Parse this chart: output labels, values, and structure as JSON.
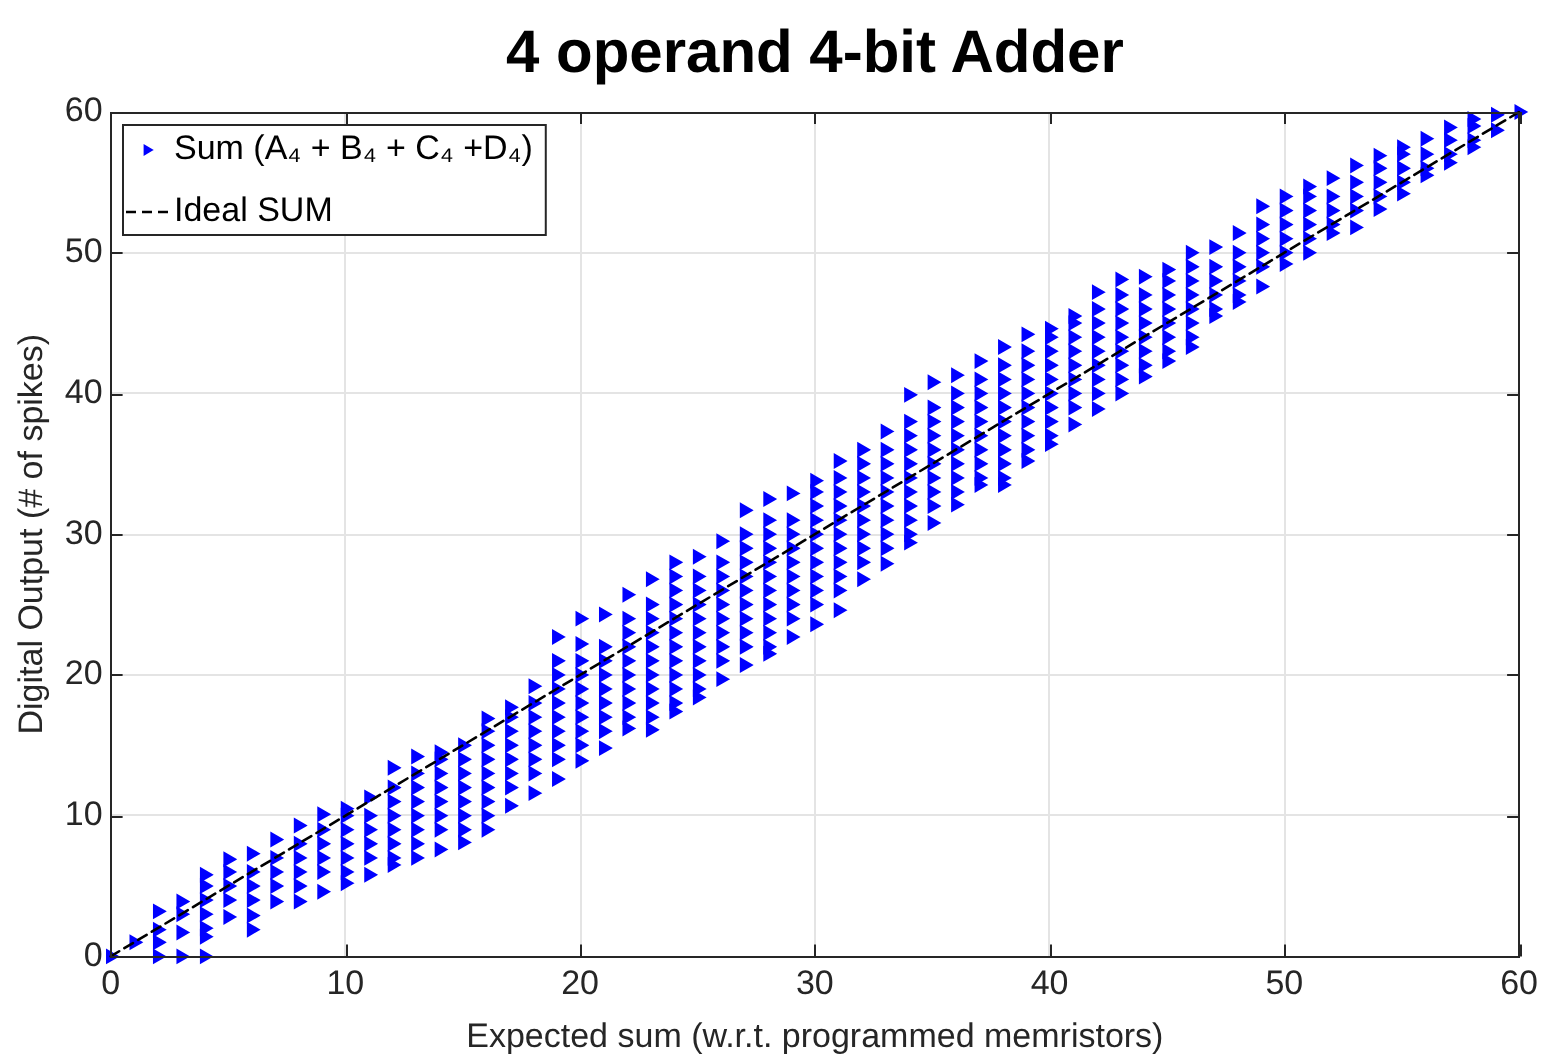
{
  "chart_data": {
    "type": "scatter",
    "title": "4 operand 4-bit Adder",
    "xlabel": "Expected sum (w.r.t. programmed memristors)",
    "ylabel": "Digital Output (# of spikes)",
    "xlim": [
      0,
      60
    ],
    "ylim": [
      0,
      60
    ],
    "xticks": [
      0,
      10,
      20,
      30,
      40,
      50,
      60
    ],
    "yticks": [
      0,
      10,
      20,
      30,
      40,
      50,
      60
    ],
    "grid": true,
    "legend": "top left",
    "series": [
      {
        "name": "Sum (A₄ + B₄ + C₄ +D₄)",
        "color": "#0000ff",
        "marker": "triangle",
        "x": [
          0,
          1,
          2,
          2,
          2,
          2,
          3,
          3,
          3,
          3,
          4,
          4,
          4,
          4,
          4,
          4,
          4,
          5,
          5,
          5,
          5,
          5,
          6,
          6,
          6,
          6,
          6,
          6,
          7,
          7,
          7,
          7,
          7,
          8,
          8,
          8,
          8,
          8,
          8,
          9,
          9,
          9,
          9,
          9,
          9,
          10,
          10,
          10,
          10,
          10,
          10,
          10,
          11,
          11,
          11,
          11,
          11,
          11,
          12,
          12,
          12,
          12,
          12,
          12,
          12,
          12,
          13,
          13,
          13,
          13,
          13,
          13,
          13,
          13,
          14,
          14,
          14,
          14,
          14,
          14,
          14,
          14,
          15,
          15,
          15,
          15,
          15,
          15,
          15,
          15,
          16,
          16,
          16,
          16,
          16,
          16,
          16,
          16,
          16,
          17,
          17,
          17,
          17,
          17,
          17,
          17,
          17,
          18,
          18,
          18,
          18,
          18,
          18,
          18,
          18,
          19,
          19,
          19,
          19,
          19,
          19,
          19,
          19,
          19,
          19,
          20,
          20,
          20,
          20,
          20,
          20,
          20,
          20,
          20,
          20,
          21,
          21,
          21,
          21,
          21,
          21,
          21,
          21,
          21,
          22,
          22,
          22,
          22,
          22,
          22,
          22,
          22,
          22,
          22,
          23,
          23,
          23,
          23,
          23,
          23,
          23,
          23,
          23,
          23,
          23,
          24,
          24,
          24,
          24,
          24,
          24,
          24,
          24,
          24,
          24,
          24,
          24,
          25,
          25,
          25,
          25,
          25,
          25,
          25,
          25,
          25,
          25,
          25,
          26,
          26,
          26,
          26,
          26,
          26,
          26,
          26,
          26,
          26,
          27,
          27,
          27,
          27,
          27,
          27,
          27,
          27,
          27,
          27,
          27,
          28,
          28,
          28,
          28,
          28,
          28,
          28,
          28,
          28,
          28,
          28,
          28,
          29,
          29,
          29,
          29,
          29,
          29,
          29,
          29,
          29,
          29,
          30,
          30,
          30,
          30,
          30,
          30,
          30,
          30,
          30,
          30,
          30,
          31,
          31,
          31,
          31,
          31,
          31,
          31,
          31,
          31,
          31,
          31,
          32,
          32,
          32,
          32,
          32,
          32,
          32,
          32,
          32,
          32,
          33,
          33,
          33,
          33,
          33,
          33,
          33,
          33,
          33,
          33,
          34,
          34,
          34,
          34,
          34,
          34,
          34,
          34,
          34,
          34,
          34,
          35,
          35,
          35,
          35,
          35,
          35,
          35,
          35,
          35,
          35,
          36,
          36,
          36,
          36,
          36,
          36,
          36,
          36,
          36,
          36,
          37,
          37,
          37,
          37,
          37,
          37,
          37,
          37,
          37,
          37,
          38,
          38,
          38,
          38,
          38,
          38,
          38,
          38,
          38,
          38,
          38,
          39,
          39,
          39,
          39,
          39,
          39,
          39,
          39,
          39,
          39,
          40,
          40,
          40,
          40,
          40,
          40,
          40,
          40,
          40,
          40,
          41,
          41,
          41,
          41,
          41,
          41,
          41,
          41,
          41,
          42,
          42,
          42,
          42,
          42,
          42,
          42,
          42,
          42,
          43,
          43,
          43,
          43,
          43,
          43,
          43,
          43,
          43,
          44,
          44,
          44,
          44,
          44,
          44,
          44,
          44,
          45,
          45,
          45,
          45,
          45,
          45,
          45,
          45,
          46,
          46,
          46,
          46,
          46,
          46,
          46,
          46,
          47,
          47,
          47,
          47,
          47,
          47,
          48,
          48,
          48,
          48,
          48,
          48,
          49,
          49,
          49,
          49,
          49,
          49,
          50,
          50,
          50,
          50,
          50,
          50,
          51,
          51,
          51,
          51,
          51,
          51,
          52,
          52,
          52,
          52,
          52,
          53,
          53,
          53,
          53,
          53,
          54,
          54,
          54,
          54,
          54,
          55,
          55,
          55,
          55,
          55,
          56,
          56,
          56,
          56,
          57,
          57,
          57,
          57,
          58,
          58,
          58,
          58,
          59,
          59,
          60
        ],
        "values": [
          0,
          1,
          0,
          1,
          1.9,
          3.2,
          0,
          1.7,
          3,
          3.9,
          0,
          1.4,
          2,
          3,
          4,
          5,
          5.8,
          2.8,
          4,
          5,
          6,
          6.9,
          1.9,
          2.9,
          4,
          5,
          6,
          7.3,
          3.9,
          5,
          6,
          7,
          8.3,
          3.9,
          5,
          6,
          7,
          8,
          9.3,
          4.6,
          6,
          7,
          8,
          9,
          10.1,
          5.2,
          6,
          7,
          8,
          9,
          10,
          10.5,
          5.8,
          7,
          8,
          9,
          10,
          11.3,
          6.5,
          7,
          8,
          9,
          10,
          11,
          12,
          13.4,
          7,
          8,
          9,
          10,
          11,
          12,
          13,
          14.2,
          7.6,
          9,
          10,
          11,
          12,
          13,
          14,
          14.5,
          8.1,
          9,
          10,
          11,
          12,
          13,
          14,
          15,
          9,
          10,
          11,
          12,
          13,
          14,
          15,
          16,
          16.9,
          10.7,
          12,
          13,
          14,
          15,
          16,
          17,
          17.7,
          11.6,
          13,
          14,
          15,
          16,
          17,
          18,
          19.2,
          12.6,
          14,
          15,
          16,
          17,
          18,
          19,
          20,
          21,
          22.7,
          13.9,
          15,
          16,
          17,
          18,
          19,
          20,
          21,
          22.2,
          24,
          14.8,
          16,
          17,
          18,
          19,
          20,
          21,
          22,
          24.3,
          16.2,
          17,
          18,
          19,
          20,
          21,
          22,
          23,
          24,
          25.7,
          16.1,
          17,
          18,
          19,
          20,
          21,
          22,
          23,
          24,
          25,
          26.8,
          17.4,
          18,
          19,
          20,
          21,
          22,
          23,
          24,
          25,
          26,
          27,
          28,
          18.4,
          19,
          20,
          21,
          22,
          23,
          24,
          25,
          26,
          27,
          28.4,
          19.7,
          21,
          22,
          23,
          24,
          25,
          26,
          27,
          28,
          29.5,
          20.7,
          22,
          23,
          24,
          25,
          26,
          27,
          28,
          29,
          30,
          31.7,
          21.5,
          22,
          23,
          24,
          25,
          26,
          27,
          28,
          29,
          30,
          31,
          32.5,
          22.7,
          24,
          25,
          26,
          27,
          28,
          29,
          30,
          31,
          32.9,
          23.6,
          25,
          26,
          27,
          28,
          29,
          30,
          31,
          32,
          33,
          33.8,
          24.6,
          26,
          27,
          28,
          29,
          30,
          31,
          32,
          33,
          34,
          35.2,
          26.8,
          28,
          29,
          30,
          31,
          32,
          33,
          34,
          35,
          36,
          27.9,
          29,
          30,
          31,
          32,
          33,
          34,
          35,
          36,
          37.3,
          29.4,
          30,
          31,
          32,
          33,
          34,
          35,
          36,
          37,
          38,
          39.9,
          30.8,
          32,
          33,
          34,
          35,
          36,
          37,
          38,
          39,
          40.8,
          32.1,
          33,
          34,
          35,
          36,
          37,
          38,
          39,
          40,
          41.3,
          33.5,
          34,
          35,
          36,
          37,
          38,
          39,
          40,
          41,
          42.3,
          33.5,
          34,
          35,
          36,
          37,
          38,
          39,
          40,
          41,
          42,
          43.3,
          35.2,
          36,
          37,
          38,
          39,
          40,
          41,
          42,
          43,
          44.2,
          36.4,
          37,
          38,
          39,
          40,
          41,
          42,
          43,
          44,
          44.6,
          37.8,
          39,
          40,
          41,
          42,
          43,
          44,
          45,
          45.5,
          38.9,
          40,
          41,
          42,
          43,
          44,
          45,
          46,
          47.2,
          40,
          41,
          42,
          43,
          44,
          45,
          46,
          47,
          48.1,
          41.2,
          42,
          43,
          44,
          45,
          46,
          47,
          48.3,
          42.3,
          43,
          44,
          45,
          46,
          47,
          48,
          48.8,
          43.3,
          44,
          45,
          46,
          47,
          48,
          49,
          50,
          45.5,
          46,
          47,
          48,
          49,
          50.4,
          46.5,
          47,
          48,
          49,
          50,
          51.4,
          47.6,
          49,
          50,
          51,
          52,
          53.3,
          49.2,
          50,
          51,
          52,
          53,
          54,
          50,
          51,
          52,
          53,
          54,
          54.7,
          51.4,
          52,
          53,
          54,
          55.3,
          51.8,
          53,
          54,
          55,
          56.2,
          53.1,
          54,
          55,
          56,
          56.9,
          54.2,
          55,
          56,
          57,
          57.5,
          55.5,
          56,
          57,
          58.1,
          56.4,
          57,
          58,
          58.9,
          57.5,
          58,
          59,
          59.5,
          58.7,
          59.8,
          60
        ]
      },
      {
        "name": "Ideal SUM",
        "type": "line",
        "color": "#000000",
        "line_style": "dashed",
        "x": [
          0,
          60
        ],
        "values": [
          0,
          60
        ]
      }
    ]
  }
}
